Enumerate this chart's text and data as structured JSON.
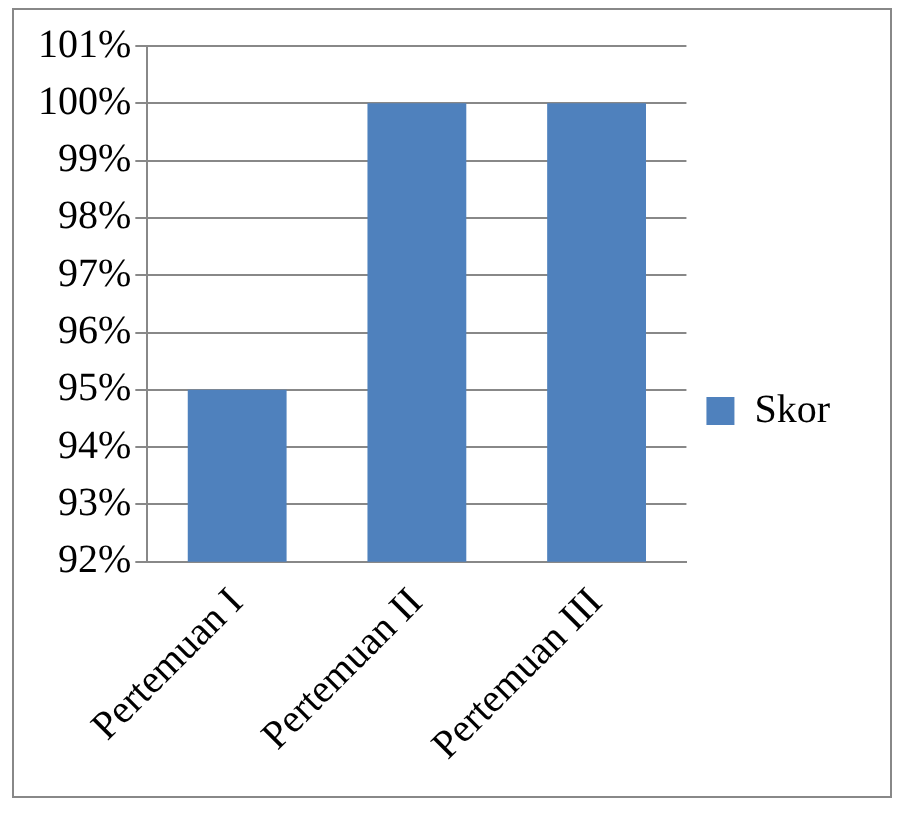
{
  "chart_data": {
    "type": "bar",
    "categories": [
      "Pertemuan I",
      "Pertemuan II",
      "Pertemuan III"
    ],
    "series": [
      {
        "name": "Skor",
        "color": "#4f81bd",
        "values": [
          95,
          100,
          100
        ]
      }
    ],
    "ylim": [
      92,
      101
    ],
    "yticks": [
      {
        "value": 92,
        "label": "92%"
      },
      {
        "value": 93,
        "label": "93%"
      },
      {
        "value": 94,
        "label": "94%"
      },
      {
        "value": 95,
        "label": "95%"
      },
      {
        "value": 96,
        "label": "96%"
      },
      {
        "value": 97,
        "label": "97%"
      },
      {
        "value": 98,
        "label": "98%"
      },
      {
        "value": 99,
        "label": "99%"
      },
      {
        "value": 100,
        "label": "100%"
      },
      {
        "value": 101,
        "label": "101%"
      }
    ],
    "grid": "y",
    "legend": "right"
  }
}
